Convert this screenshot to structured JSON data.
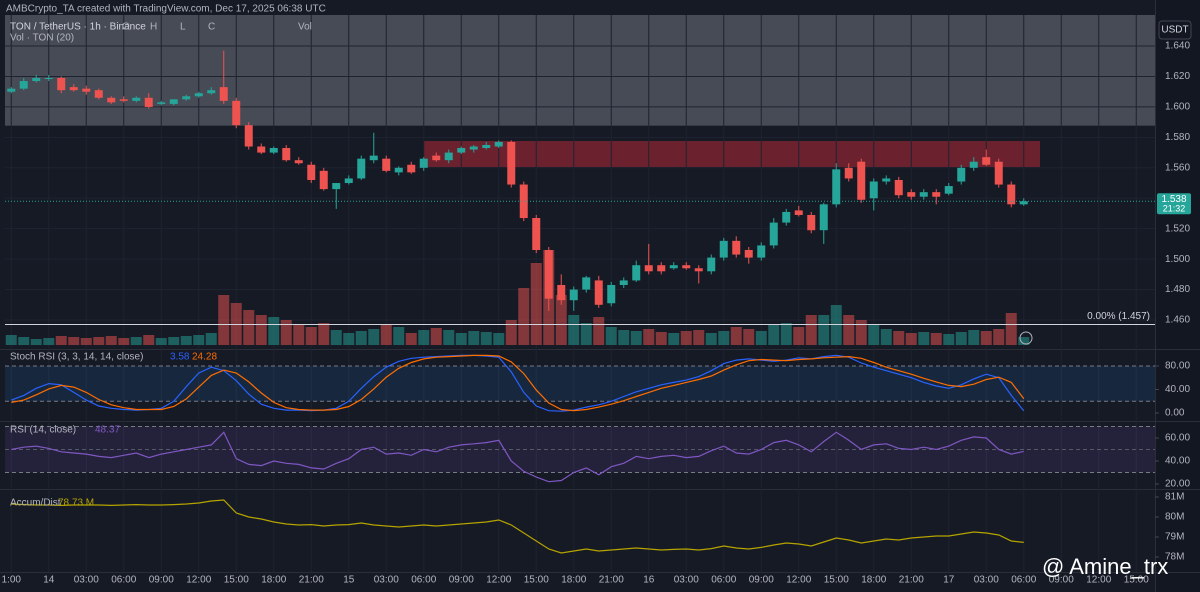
{
  "credit": "AMBCrypto_TA created with TradingView.com, Dec 17, 2025 06:38 UTC",
  "watermark": "@ Amine_trx",
  "chart_data": [
    {
      "type": "candlestick",
      "title": "TON / TetherUS · 1h · Binance",
      "legend_labels": [
        "O",
        "H",
        "L",
        "C",
        "Vol"
      ],
      "currency": "USDT",
      "up_color": "#26a69a",
      "down_color": "#ef5350",
      "ohlc": [
        [
          1.61,
          1.613,
          1.609,
          1.612
        ],
        [
          1.612,
          1.619,
          1.611,
          1.617
        ],
        [
          1.617,
          1.621,
          1.616,
          1.619
        ],
        [
          1.619,
          1.621,
          1.617,
          1.619
        ],
        [
          1.619,
          1.62,
          1.609,
          1.611
        ],
        [
          1.613,
          1.615,
          1.61,
          1.611
        ],
        [
          1.612,
          1.614,
          1.608,
          1.61
        ],
        [
          1.611,
          1.612,
          1.605,
          1.606
        ],
        [
          1.606,
          1.607,
          1.602,
          1.603
        ],
        [
          1.605,
          1.607,
          1.603,
          1.604
        ],
        [
          1.604,
          1.607,
          1.603,
          1.606
        ],
        [
          1.606,
          1.609,
          1.599,
          1.6
        ],
        [
          1.602,
          1.604,
          1.601,
          1.603
        ],
        [
          1.602,
          1.605,
          1.601,
          1.605
        ],
        [
          1.605,
          1.608,
          1.604,
          1.607
        ],
        [
          1.607,
          1.61,
          1.606,
          1.609
        ],
        [
          1.609,
          1.613,
          1.608,
          1.611
        ],
        [
          1.613,
          1.637,
          1.602,
          1.604
        ],
        [
          1.604,
          1.606,
          1.586,
          1.588
        ],
        [
          1.588,
          1.59,
          1.572,
          1.574
        ],
        [
          1.574,
          1.576,
          1.569,
          1.57
        ],
        [
          1.57,
          1.574,
          1.569,
          1.573
        ],
        [
          1.573,
          1.575,
          1.564,
          1.565
        ],
        [
          1.565,
          1.567,
          1.562,
          1.563
        ],
        [
          1.562,
          1.564,
          1.55,
          1.552
        ],
        [
          1.558,
          1.56,
          1.545,
          1.546
        ],
        [
          1.546,
          1.55,
          1.533,
          1.55
        ],
        [
          1.55,
          1.555,
          1.549,
          1.553
        ],
        [
          1.553,
          1.568,
          1.552,
          1.566
        ],
        [
          1.565,
          1.583,
          1.563,
          1.568
        ],
        [
          1.566,
          1.568,
          1.557,
          1.558
        ],
        [
          1.557,
          1.561,
          1.555,
          1.56
        ],
        [
          1.562,
          1.564,
          1.556,
          1.557
        ],
        [
          1.56,
          1.567,
          1.558,
          1.566
        ],
        [
          1.568,
          1.57,
          1.564,
          1.565
        ],
        [
          1.565,
          1.572,
          1.563,
          1.57
        ],
        [
          1.57,
          1.574,
          1.569,
          1.573
        ],
        [
          1.572,
          1.575,
          1.57,
          1.574
        ],
        [
          1.573,
          1.577,
          1.572,
          1.575
        ],
        [
          1.574,
          1.578,
          1.573,
          1.577
        ],
        [
          1.577,
          1.578,
          1.547,
          1.549
        ],
        [
          1.549,
          1.551,
          1.525,
          1.527
        ],
        [
          1.527,
          1.529,
          1.504,
          1.506
        ],
        [
          1.506,
          1.508,
          1.466,
          1.474
        ],
        [
          1.483,
          1.49,
          1.47,
          1.473
        ],
        [
          1.473,
          1.482,
          1.466,
          1.48
        ],
        [
          1.48,
          1.489,
          1.478,
          1.488
        ],
        [
          1.486,
          1.489,
          1.468,
          1.47
        ],
        [
          1.471,
          1.485,
          1.469,
          1.483
        ],
        [
          1.483,
          1.488,
          1.481,
          1.486
        ],
        [
          1.486,
          1.499,
          1.485,
          1.496
        ],
        [
          1.496,
          1.51,
          1.49,
          1.492
        ],
        [
          1.496,
          1.498,
          1.49,
          1.492
        ],
        [
          1.494,
          1.498,
          1.493,
          1.496
        ],
        [
          1.496,
          1.498,
          1.493,
          1.494
        ],
        [
          1.494,
          1.496,
          1.484,
          1.492
        ],
        [
          1.492,
          1.503,
          1.49,
          1.501
        ],
        [
          1.501,
          1.514,
          1.499,
          1.512
        ],
        [
          1.512,
          1.515,
          1.501,
          1.503
        ],
        [
          1.506,
          1.508,
          1.497,
          1.501
        ],
        [
          1.501,
          1.511,
          1.499,
          1.509
        ],
        [
          1.509,
          1.527,
          1.507,
          1.524
        ],
        [
          1.524,
          1.533,
          1.522,
          1.531
        ],
        [
          1.532,
          1.535,
          1.528,
          1.529
        ],
        [
          1.529,
          1.531,
          1.517,
          1.519
        ],
        [
          1.519,
          1.537,
          1.51,
          1.536
        ],
        [
          1.536,
          1.563,
          1.534,
          1.559
        ],
        [
          1.56,
          1.563,
          1.551,
          1.553
        ],
        [
          1.564,
          1.566,
          1.537,
          1.539
        ],
        [
          1.54,
          1.553,
          1.532,
          1.551
        ],
        [
          1.551,
          1.555,
          1.549,
          1.553
        ],
        [
          1.552,
          1.554,
          1.54,
          1.542
        ],
        [
          1.544,
          1.546,
          1.539,
          1.541
        ],
        [
          1.541,
          1.546,
          1.539,
          1.544
        ],
        [
          1.544,
          1.546,
          1.536,
          1.541
        ],
        [
          1.543,
          1.55,
          1.542,
          1.548
        ],
        [
          1.551,
          1.562,
          1.549,
          1.56
        ],
        [
          1.56,
          1.567,
          1.558,
          1.564
        ],
        [
          1.567,
          1.572,
          1.561,
          1.562
        ],
        [
          1.564,
          1.566,
          1.547,
          1.549
        ],
        [
          1.549,
          1.551,
          1.534,
          1.536
        ],
        [
          1.536,
          1.54,
          1.535,
          1.538
        ]
      ],
      "xlim": [
        -0.5,
        91.5
      ],
      "xticks": [
        {
          "value": 0,
          "label": "1:00"
        },
        {
          "value": 3,
          "label": "14"
        },
        {
          "value": 6,
          "label": "03:00"
        },
        {
          "value": 9,
          "label": "06:00"
        },
        {
          "value": 12,
          "label": "09:00"
        },
        {
          "value": 15,
          "label": "12:00"
        },
        {
          "value": 18,
          "label": "15:00"
        },
        {
          "value": 21,
          "label": "18:00"
        },
        {
          "value": 24,
          "label": "21:00"
        },
        {
          "value": 27,
          "label": "15"
        },
        {
          "value": 30,
          "label": "03:00"
        },
        {
          "value": 33,
          "label": "06:00"
        },
        {
          "value": 36,
          "label": "09:00"
        },
        {
          "value": 39,
          "label": "12:00"
        },
        {
          "value": 42,
          "label": "15:00"
        },
        {
          "value": 45,
          "label": "18:00"
        },
        {
          "value": 48,
          "label": "21:00"
        },
        {
          "value": 51,
          "label": "16"
        },
        {
          "value": 54,
          "label": "03:00"
        },
        {
          "value": 57,
          "label": "06:00"
        },
        {
          "value": 60,
          "label": "09:00"
        },
        {
          "value": 63,
          "label": "12:00"
        },
        {
          "value": 66,
          "label": "15:00"
        },
        {
          "value": 69,
          "label": "18:00"
        },
        {
          "value": 72,
          "label": "21:00"
        },
        {
          "value": 75,
          "label": "17"
        },
        {
          "value": 78,
          "label": "03:00"
        },
        {
          "value": 81,
          "label": "06:00"
        },
        {
          "value": 84,
          "label": "09:00"
        },
        {
          "value": 87,
          "label": "12:00"
        },
        {
          "value": 90,
          "label": "15:00"
        }
      ],
      "ylim": [
        1.4416,
        1.6604
      ],
      "yticks": [
        {
          "value": 1.46,
          "label": "1.460"
        },
        {
          "value": 1.48,
          "label": "1.480"
        },
        {
          "value": 1.5,
          "label": "1.500"
        },
        {
          "value": 1.52,
          "label": "1.520"
        },
        {
          "value": 1.54,
          "label": "1.540"
        },
        {
          "value": 1.56,
          "label": "1.560"
        },
        {
          "value": 1.58,
          "label": "1.580"
        },
        {
          "value": 1.6,
          "label": "1.600"
        },
        {
          "value": 1.62,
          "label": "1.620"
        },
        {
          "value": 1.64,
          "label": "1.640"
        }
      ],
      "grid": true,
      "zones": [
        {
          "from": 1.5877,
          "to": 1.6604,
          "color": "rgba(120,123,134,0.5)"
        },
        {
          "from": 1.5605,
          "to": 1.5776,
          "start": 33,
          "end": 82.3,
          "color": "rgba(178,40,55,0.55)"
        }
      ],
      "fib": {
        "value": 1.457,
        "label": "0.00% (1.457)",
        "color": "#d1d4dc"
      },
      "last_price": 1.538,
      "countdown": "21:32"
    },
    {
      "type": "bar",
      "title": "Vol · TON (20)",
      "ylim": [
        0,
        100
      ],
      "opacity": 0.5,
      "values": [
        10,
        8,
        6,
        7,
        9,
        8,
        7,
        8,
        9,
        7,
        8,
        10,
        7,
        8,
        9,
        10,
        12,
        50,
        42,
        35,
        30,
        28,
        25,
        20,
        18,
        22,
        15,
        12,
        14,
        16,
        20,
        18,
        12,
        15,
        17,
        15,
        12,
        14,
        13,
        12,
        25,
        57,
        82,
        95,
        50,
        30,
        22,
        28,
        18,
        15,
        14,
        16,
        13,
        12,
        14,
        15,
        12,
        14,
        18,
        16,
        14,
        20,
        22,
        18,
        30,
        30,
        40,
        30,
        25,
        20,
        16,
        14,
        12,
        13,
        12,
        11,
        13,
        15,
        14,
        16,
        32,
        8
      ]
    },
    {
      "type": "line",
      "title": "Stoch RSI (3, 3, 14, 14, close)",
      "ylim": [
        -11.9,
        103.8
      ],
      "yticks": [
        {
          "value": 0,
          "label": "0.00"
        },
        {
          "value": 40,
          "label": "40.00"
        },
        {
          "value": 80,
          "label": "80.00"
        }
      ],
      "band": [
        20,
        80
      ],
      "band_color": "rgba(33,150,243,0.12)",
      "series": [
        {
          "color": "#2962ff",
          "values": [
            22,
            30,
            42,
            50,
            48,
            35,
            22,
            12,
            8,
            6,
            5,
            6,
            8,
            20,
            45,
            68,
            78,
            72,
            55,
            32,
            15,
            8,
            5,
            5,
            4,
            5,
            8,
            20,
            42,
            62,
            78,
            88,
            93,
            95,
            96,
            97,
            98,
            98,
            97,
            95,
            70,
            35,
            12,
            4,
            3,
            5,
            10,
            14,
            20,
            28,
            36,
            42,
            48,
            52,
            56,
            62,
            72,
            84,
            90,
            92,
            90,
            88,
            90,
            94,
            92,
            96,
            98,
            95,
            85,
            78,
            72,
            66,
            60,
            52,
            46,
            42,
            48,
            58,
            66,
            60,
            30,
            3.58
          ]
        },
        {
          "color": "#ff6d00",
          "values": [
            18,
            22,
            31,
            41,
            47,
            44,
            35,
            23,
            14,
            9,
            6,
            6,
            6,
            11,
            24,
            44,
            64,
            73,
            68,
            53,
            34,
            18,
            9,
            6,
            5,
            5,
            6,
            11,
            23,
            41,
            61,
            76,
            86,
            92,
            95,
            96,
            97,
            98,
            98,
            97,
            87,
            67,
            39,
            17,
            6,
            4,
            6,
            10,
            15,
            21,
            28,
            35,
            42,
            47,
            52,
            57,
            63,
            73,
            82,
            89,
            91,
            90,
            89,
            91,
            92,
            94,
            95,
            96,
            93,
            86,
            78,
            72,
            66,
            59,
            53,
            47,
            45,
            49,
            57,
            61,
            52,
            24.28
          ]
        }
      ]
    },
    {
      "type": "line",
      "title": "RSI (14, close)",
      "ylim": [
        16.5,
        72.2
      ],
      "yticks": [
        {
          "value": 20,
          "label": "20.00"
        },
        {
          "value": 40,
          "label": "40.00"
        },
        {
          "value": 60,
          "label": "60.00"
        }
      ],
      "band": [
        30,
        70
      ],
      "midline": 50,
      "band_color": "rgba(126,87,194,0.14)",
      "series": [
        {
          "color": "#7e57c2",
          "values": [
            50,
            52,
            53,
            51,
            48,
            47,
            46,
            44,
            43,
            45,
            47,
            43,
            46,
            48,
            50,
            52,
            54,
            65,
            42,
            37,
            36,
            40,
            38,
            37,
            34,
            33,
            38,
            42,
            50,
            52,
            46,
            47,
            45,
            50,
            48,
            52,
            54,
            55,
            56,
            58,
            40,
            31,
            26,
            22,
            23,
            30,
            34,
            28,
            35,
            38,
            44,
            42,
            44,
            45,
            43,
            44,
            49,
            53,
            47,
            46,
            50,
            56,
            58,
            54,
            48,
            57,
            65,
            58,
            50,
            54,
            55,
            51,
            50,
            52,
            50,
            53,
            58,
            61,
            60,
            50,
            46,
            48.37
          ]
        }
      ]
    },
    {
      "type": "line",
      "title": "Accum/Dist",
      "last_label": "78.73 M",
      "ylim": [
        77250000,
        81250000
      ],
      "yticks": [
        {
          "value": 78000000,
          "label": "78M"
        },
        {
          "value": 79000000,
          "label": "79M"
        },
        {
          "value": 80000000,
          "label": "80M"
        },
        {
          "value": 81000000,
          "label": "81M"
        }
      ],
      "series": [
        {
          "color": "#b5a300",
          "values": [
            80650000,
            80620000,
            80600000,
            80600000,
            80580000,
            80600000,
            80600000,
            80600000,
            80580000,
            80600000,
            80620000,
            80600000,
            80600000,
            80620000,
            80650000,
            80700000,
            80800000,
            80850000,
            80200000,
            80000000,
            79900000,
            79750000,
            79650000,
            79600000,
            79620000,
            79550000,
            79600000,
            79620000,
            79700000,
            79600000,
            79550000,
            79500000,
            79550000,
            79600000,
            79550000,
            79600000,
            79650000,
            79700000,
            79750000,
            79850000,
            79600000,
            79200000,
            78800000,
            78400000,
            78200000,
            78300000,
            78400000,
            78300000,
            78350000,
            78400000,
            78450000,
            78400000,
            78350000,
            78380000,
            78400000,
            78350000,
            78420000,
            78550000,
            78450000,
            78400000,
            78480000,
            78600000,
            78700000,
            78650000,
            78550000,
            78750000,
            78950000,
            78850000,
            78700000,
            78800000,
            78900000,
            78850000,
            78950000,
            79000000,
            79050000,
            79050000,
            79150000,
            79250000,
            79200000,
            79100000,
            78800000,
            78730000
          ]
        }
      ]
    }
  ]
}
